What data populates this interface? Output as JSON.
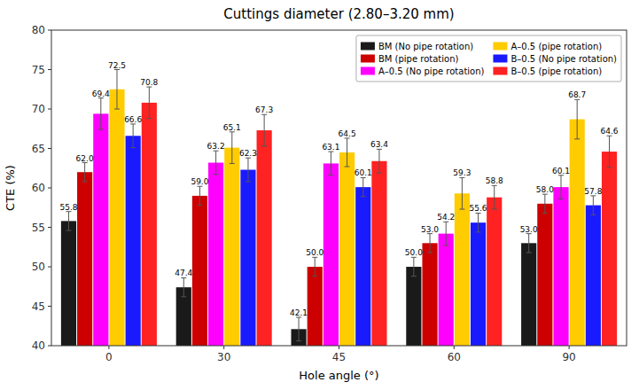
{
  "chart_data": {
    "type": "bar",
    "title": "Cuttings diameter (2.80–3.20 mm)",
    "x_label": "Hole angle (°)",
    "y_label": "CTE (%)",
    "categories": [
      "0",
      "30",
      "45",
      "60",
      "90"
    ],
    "ylim": [
      40,
      80
    ],
    "yticks": [
      40,
      45,
      50,
      55,
      60,
      65,
      70,
      75,
      80
    ],
    "grid": false,
    "legend": "upper right",
    "data_labels": true,
    "series": [
      {
        "name": "BM (No pipe rotation)",
        "color": "#1a1a1a",
        "values": [
          55.8,
          47.4,
          42.1,
          50.0,
          53.0
        ],
        "value_labels": [
          "55.8",
          "47.4",
          "42.1",
          "50.0",
          "53.0"
        ],
        "errors": [
          1.2,
          1.2,
          1.5,
          1.2,
          1.2
        ]
      },
      {
        "name": "BM (pipe rotation)",
        "color": "#cc0000",
        "values": [
          62.0,
          59.0,
          50.0,
          53.0,
          58.0
        ],
        "value_labels": [
          "62.0",
          "59.0",
          "50.0",
          "53.0",
          "58.0"
        ],
        "errors": [
          1.2,
          1.2,
          1.2,
          1.2,
          1.2
        ]
      },
      {
        "name": "A–0.5 (No pipe rotation)",
        "color": "#ff00ff",
        "values": [
          69.4,
          63.2,
          63.1,
          54.2,
          60.1
        ],
        "value_labels": [
          "69.4",
          "63.2",
          "63.1",
          "54.2",
          "60.1"
        ],
        "errors": [
          2.0,
          1.5,
          1.5,
          1.5,
          1.5
        ]
      },
      {
        "name": "A–0.5 (pipe rotation)",
        "color": "#ffcc00",
        "values": [
          72.5,
          65.1,
          64.5,
          59.3,
          68.7
        ],
        "value_labels": [
          "72.5",
          "65.1",
          "64.5",
          "59.3",
          "68.7"
        ],
        "errors": [
          2.5,
          2.0,
          1.8,
          2.0,
          2.5
        ]
      },
      {
        "name": "B–0.5 (No pipe rotation)",
        "color": "#1a1aff",
        "values": [
          66.6,
          62.3,
          60.1,
          55.6,
          57.8
        ],
        "value_labels": [
          "66.6",
          "62.3",
          "60.1",
          "55.6",
          "57.8"
        ],
        "errors": [
          1.5,
          1.5,
          1.2,
          1.2,
          1.2
        ]
      },
      {
        "name": "B–0.5 (pipe rotation)",
        "color": "#ff2222",
        "values": [
          70.8,
          67.3,
          63.4,
          58.8,
          64.6
        ],
        "value_labels": [
          "70.8",
          "67.3",
          "63.4",
          "58.8",
          "64.6"
        ],
        "errors": [
          2.0,
          2.0,
          1.5,
          1.5,
          2.0
        ]
      }
    ]
  }
}
